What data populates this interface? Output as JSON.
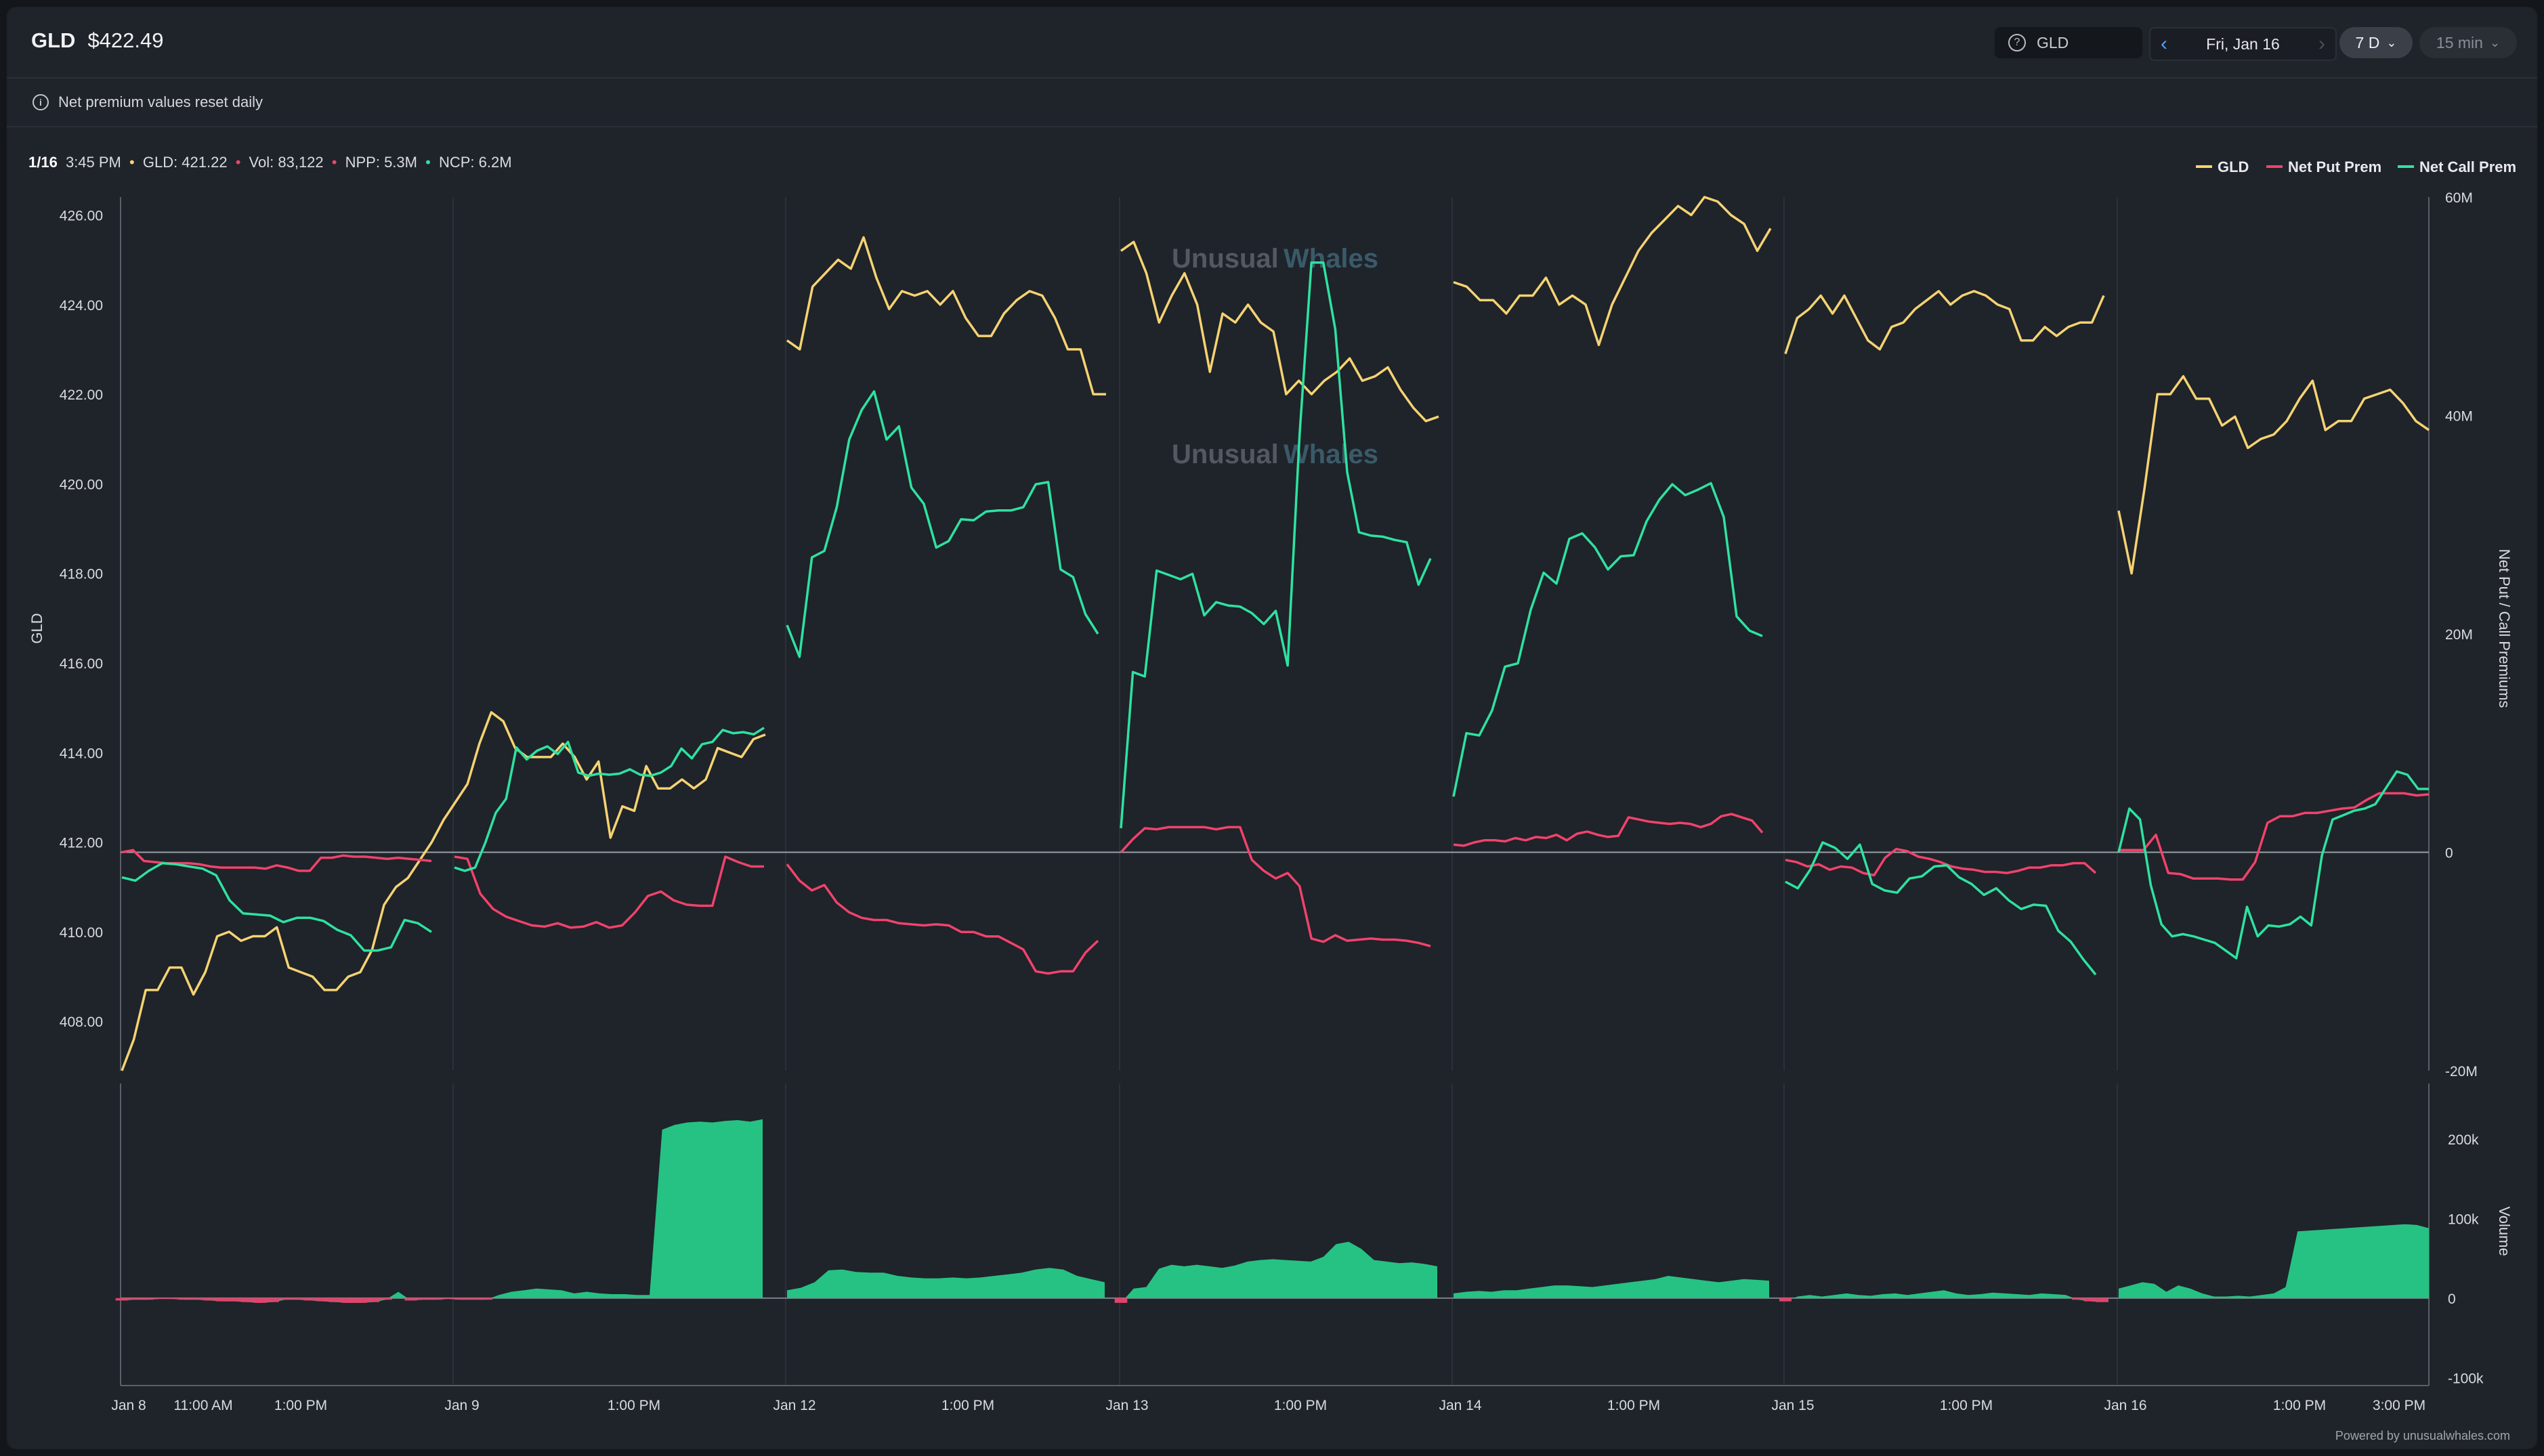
{
  "header": {
    "symbol": "GLD",
    "price": "$422.49",
    "search_value": "GLD",
    "date_label": "Fri, Jan 16",
    "range_label": "7 D",
    "interval_label": "15 min"
  },
  "notice": {
    "text": "Net premium values reset daily"
  },
  "readout": {
    "date": "1/16",
    "time": "3:45 PM",
    "gld": "GLD: 421.22",
    "vol": "Vol: 83,122",
    "npp": "NPP: 5.3M",
    "ncp": "NCP: 6.2M"
  },
  "legend": [
    {
      "name": "GLD",
      "color": "#f5d372"
    },
    {
      "name": "Net Put Prem",
      "color": "#f0436b"
    },
    {
      "name": "Net Call Prem",
      "color": "#2ee2a0"
    }
  ],
  "watermark": {
    "left": "Unusual",
    "right": "Whales"
  },
  "footer": "Powered by unusualwhales.com",
  "chart_data": {
    "type": "line",
    "days": [
      "Jan 8",
      "Jan 9",
      "Jan 12",
      "Jan 13",
      "Jan 14",
      "Jan 15",
      "Jan 16"
    ],
    "x_tick_labels": [
      "Jan 8",
      "11:00 AM",
      "1:00 PM",
      "Jan 9",
      "1:00 PM",
      "Jan 12",
      "1:00 PM",
      "Jan 13",
      "1:00 PM",
      "Jan 14",
      "1:00 PM",
      "Jan 15",
      "1:00 PM",
      "Jan 16",
      "1:00 PM",
      "3:00 PM"
    ],
    "left_axis": {
      "label": "GLD",
      "ticks": [
        "426.00",
        "424.00",
        "422.00",
        "420.00",
        "418.00",
        "416.00",
        "414.00",
        "412.00",
        "410.00",
        "408.00"
      ],
      "range": [
        406.9,
        426.4
      ]
    },
    "right_axis": {
      "label": "Net Put / Call Premiums",
      "ticks": [
        "60M",
        "40M",
        "20M",
        "0",
        "-20M"
      ],
      "range": [
        -20,
        60
      ],
      "unit": "M"
    },
    "volume_axis": {
      "label": "Volume",
      "ticks": [
        "200k",
        "100k",
        "0",
        "-100k"
      ],
      "range": [
        -110,
        270
      ],
      "unit": "k"
    },
    "series": [
      {
        "name": "GLD",
        "axis": "left",
        "color": "#f5d372",
        "segments": [
          [
            406.9,
            407.6,
            408.7,
            408.7,
            409.2,
            409.2,
            408.6,
            409.1,
            409.9,
            410.0,
            409.8,
            409.9,
            409.9,
            410.1,
            409.2,
            409.1,
            409.0,
            408.7,
            408.7,
            409.0,
            409.1,
            409.6,
            410.6,
            411.0,
            411.2,
            411.6,
            412.0,
            412.5,
            412.9,
            413.3,
            414.2,
            414.9,
            414.7,
            414.1,
            413.9,
            413.9,
            413.9,
            414.2,
            413.9,
            413.4,
            413.8,
            412.1,
            412.8,
            412.7,
            413.7,
            413.2,
            413.2,
            413.4,
            413.2,
            413.4,
            414.1,
            414.0,
            413.9,
            414.3,
            414.4
          ],
          [
            423.2,
            423.0,
            424.4,
            424.7,
            425.0,
            424.8,
            425.5,
            424.6,
            423.9,
            424.3,
            424.2,
            424.3,
            424.0,
            424.3,
            423.7,
            423.3,
            423.3,
            423.8,
            424.1,
            424.3,
            424.2,
            423.7,
            423.0,
            423.0,
            422.0,
            422.0
          ],
          [
            425.2,
            425.4,
            424.7,
            423.6,
            424.2,
            424.7,
            424.0,
            422.5,
            423.8,
            423.6,
            424.0,
            423.6,
            423.4,
            422.0,
            422.3,
            422.0,
            422.3,
            422.5,
            422.8,
            422.3,
            422.4,
            422.6,
            422.1,
            421.7,
            421.4,
            421.5
          ],
          [
            424.5,
            424.4,
            424.1,
            424.1,
            423.8,
            424.2,
            424.2,
            424.6,
            424.0,
            424.2,
            424.0,
            423.1,
            424.0,
            424.6,
            425.2,
            425.6,
            425.9,
            426.2,
            426.0,
            426.4,
            426.3,
            426.0,
            425.8,
            425.2,
            425.7
          ],
          [
            422.9,
            423.7,
            423.9,
            424.2,
            423.8,
            424.2,
            423.7,
            423.2,
            423.0,
            423.5,
            423.6,
            423.9,
            424.1,
            424.3,
            424.0,
            424.2,
            424.3,
            424.2,
            424.0,
            423.9,
            423.2,
            423.2,
            423.5,
            423.3,
            423.5,
            423.6,
            423.6,
            424.2
          ],
          [
            419.4,
            418.0,
            419.9,
            422.0,
            422.0,
            422.4,
            421.9,
            421.9,
            421.3,
            421.5,
            420.8,
            421.0,
            421.1,
            421.4,
            421.9,
            422.3,
            421.2,
            421.4,
            421.4,
            421.9,
            422.0,
            422.1,
            421.8,
            421.4,
            421.2
          ]
        ]
      },
      {
        "name": "Net Put Prem",
        "axis": "right",
        "color": "#f0436b",
        "segments": [
          [
            0,
            0.2,
            -0.8,
            -0.9,
            -1.0,
            -1.0,
            -1.0,
            -1.1,
            -1.3,
            -1.4,
            -1.4,
            -1.4,
            -1.4,
            -1.5,
            -1.2,
            -1.4,
            -1.7,
            -1.7,
            -0.5,
            -0.5,
            -0.3,
            -0.4,
            -0.4,
            -0.5,
            -0.6,
            -0.5,
            -0.6,
            -0.7,
            -0.8
          ],
          [
            -0.4,
            -0.6,
            -3.8,
            -5.2,
            -5.9,
            -6.3,
            -6.7,
            -6.8,
            -6.5,
            -6.9,
            -6.8,
            -6.4,
            -6.9,
            -6.7,
            -5.5,
            -4.0,
            -3.6,
            -4.4,
            -4.8,
            -4.9,
            -4.9,
            -0.4,
            -0.9,
            -1.3,
            -1.3
          ],
          [
            -1.1,
            -2.6,
            -3.5,
            -3.0,
            -4.6,
            -5.5,
            -6.0,
            -6.2,
            -6.2,
            -6.5,
            -6.6,
            -6.7,
            -6.6,
            -6.7,
            -7.3,
            -7.3,
            -7.7,
            -7.7,
            -8.3,
            -8.9,
            -10.9,
            -11.1,
            -10.9,
            -10.9,
            -9.2,
            -8.1
          ],
          [
            0,
            1.2,
            2.2,
            2.1,
            2.3,
            2.3,
            2.3,
            2.3,
            2.1,
            2.3,
            2.3,
            -0.7,
            -1.7,
            -2.4,
            -1.9,
            -3.1,
            -7.9,
            -8.2,
            -7.6,
            -8.1,
            -8.0,
            -7.9,
            -8.0,
            -8.0,
            -8.1,
            -8.3,
            -8.6
          ],
          [
            0.7,
            0.6,
            0.9,
            1.1,
            1.1,
            1.0,
            1.3,
            1.1,
            1.4,
            1.3,
            1.6,
            1.1,
            1.7,
            1.9,
            1.6,
            1.4,
            1.5,
            3.2,
            3.0,
            2.8,
            2.7,
            2.6,
            2.7,
            2.6,
            2.3,
            2.6,
            3.3,
            3.5,
            3.2,
            2.9,
            1.8
          ],
          [
            -0.7,
            -0.9,
            -1.3,
            -1.1,
            -1.6,
            -1.3,
            -1.4,
            -1.9,
            -2.1,
            -0.5,
            0.3,
            0.1,
            -0.4,
            -0.6,
            -0.9,
            -1.3,
            -1.5,
            -1.6,
            -1.8,
            -1.8,
            -1.9,
            -1.7,
            -1.4,
            -1.4,
            -1.2,
            -1.2,
            -1.0,
            -1.0,
            -1.9
          ],
          [
            0.2,
            0.2,
            0.2,
            1.6,
            -1.9,
            -2.0,
            -2.4,
            -2.4,
            -2.4,
            -2.5,
            -2.5,
            -0.9,
            2.7,
            3.3,
            3.3,
            3.6,
            3.6,
            3.8,
            4.0,
            4.1,
            4.8,
            5.4,
            5.4,
            5.4,
            5.2,
            5.3
          ]
        ]
      },
      {
        "name": "Net Call Prem",
        "axis": "right",
        "color": "#2ee2a0",
        "segments": [
          [
            -2.3,
            -2.6,
            -1.7,
            -1.0,
            -1.1,
            -1.3,
            -1.5,
            -2.1,
            -4.4,
            -5.6,
            -5.7,
            -5.8,
            -6.4,
            -6.0,
            -6.0,
            -6.3,
            -7.1,
            -7.6,
            -9.0,
            -9.0,
            -8.7,
            -6.2,
            -6.5,
            -7.3
          ],
          [
            -1.4,
            -1.7,
            -1.4,
            0.9,
            3.6,
            4.9,
            9.6,
            8.5,
            9.3,
            9.7,
            9.0,
            10.1,
            7.3,
            7.0,
            7.2,
            7.1,
            7.2,
            7.6,
            7.1,
            7.0,
            7.3,
            7.9,
            9.5,
            8.6,
            9.9,
            10.1,
            11.2,
            10.9,
            11.0,
            10.8,
            11.4
          ],
          [
            20.8,
            17.9,
            27.0,
            27.6,
            31.6,
            37.8,
            40.5,
            42.2,
            37.8,
            39.0,
            33.4,
            31.9,
            27.9,
            28.5,
            30.5,
            30.4,
            31.2,
            31.3,
            31.3,
            31.6,
            33.7,
            33.9,
            25.9,
            25.2,
            21.8,
            20.0
          ],
          [
            2.2,
            16.5,
            16.1,
            25.8,
            25.4,
            25.0,
            25.5,
            21.7,
            22.9,
            22.6,
            22.5,
            21.9,
            20.9,
            22.1,
            17.1,
            38.2,
            54.0,
            54.0,
            47.9,
            34.8,
            29.3,
            29.0,
            28.9,
            28.6,
            28.4,
            24.5,
            26.9
          ],
          [
            5.1,
            10.9,
            10.7,
            13.0,
            17.0,
            17.3,
            22.2,
            25.6,
            24.6,
            28.7,
            29.2,
            27.9,
            25.9,
            27.1,
            27.2,
            30.3,
            32.3,
            33.7,
            32.7,
            33.2,
            33.8,
            30.7,
            21.6,
            20.3,
            19.8
          ],
          [
            -2.7,
            -3.3,
            -1.6,
            0.9,
            0.4,
            -0.6,
            0.7,
            -2.9,
            -3.5,
            -3.7,
            -2.4,
            -2.2,
            -1.3,
            -1.2,
            -2.3,
            -2.9,
            -3.9,
            -3.3,
            -4.4,
            -5.2,
            -4.8,
            -4.9,
            -7.2,
            -8.2,
            -9.8,
            -11.2
          ],
          [
            0,
            4.0,
            3.0,
            -3.0,
            -6.6,
            -7.7,
            -7.5,
            -7.7,
            -8.0,
            -8.3,
            -9.0,
            -9.7,
            -5.0,
            -7.7,
            -6.7,
            -6.8,
            -6.6,
            -5.9,
            -6.7,
            -0.3,
            3.0,
            3.4,
            3.8,
            4.0,
            4.4,
            5.9,
            7.4,
            7.1,
            5.8,
            5.8
          ]
        ]
      },
      {
        "name": "Volume",
        "axis": "volume",
        "color": "#26c283",
        "segments": [
          [
            -3,
            -2,
            -2,
            -1,
            -1,
            -2,
            -2,
            -3,
            -4,
            -4,
            -5,
            -6,
            -5,
            -2,
            -2,
            -3,
            -4,
            -5,
            -6,
            -6,
            -5,
            -2,
            8,
            -3,
            -2,
            -2,
            -1,
            -2,
            -2,
            -2,
            4,
            8,
            10,
            12,
            11,
            10,
            6,
            8,
            6,
            5,
            5,
            4,
            4,
            212,
            218,
            221,
            222,
            221,
            223,
            224,
            222,
            225
          ],
          [
            10,
            13,
            20,
            35,
            36,
            33,
            32,
            32,
            28,
            26,
            25,
            25,
            26,
            25,
            26,
            28,
            30,
            32,
            36,
            38,
            36,
            28,
            24,
            20
          ],
          [
            -6,
            12,
            14,
            37,
            42,
            40,
            42,
            40,
            38,
            41,
            46,
            48,
            49,
            48,
            47,
            46,
            52,
            68,
            71,
            62,
            48,
            46,
            44,
            45,
            43,
            40
          ],
          [
            6,
            8,
            9,
            8,
            10,
            10,
            12,
            14,
            16,
            16,
            15,
            14,
            16,
            18,
            20,
            22,
            24,
            28,
            26,
            24,
            22,
            20,
            22,
            24,
            23,
            22
          ],
          [
            -4,
            2,
            4,
            2,
            4,
            6,
            4,
            3,
            5,
            6,
            4,
            6,
            8,
            10,
            6,
            4,
            5,
            7,
            6,
            5,
            4,
            6,
            5,
            4,
            -2,
            -4,
            -5
          ],
          [
            12,
            16,
            20,
            18,
            8,
            16,
            12,
            6,
            2,
            2,
            3,
            2,
            4,
            6,
            14,
            84,
            85,
            86,
            87,
            88,
            89,
            90,
            91,
            92,
            93,
            92,
            88
          ]
        ]
      }
    ]
  }
}
